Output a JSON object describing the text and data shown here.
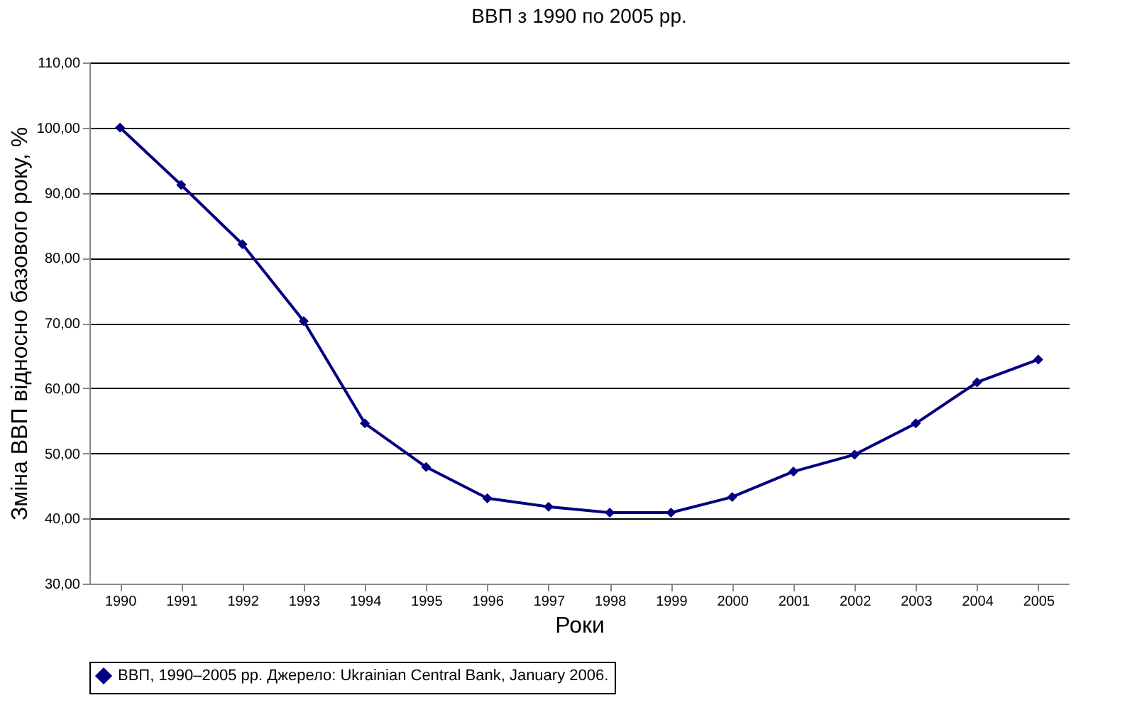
{
  "chart_data": {
    "type": "line",
    "title": "ВВП з 1990 по 2005 рр.",
    "xlabel": "Роки",
    "ylabel": "Зміна ВВП відносно базового року, %",
    "categories": [
      "1990",
      "1991",
      "1992",
      "1993",
      "1994",
      "1995",
      "1996",
      "1997",
      "1998",
      "1999",
      "2000",
      "2001",
      "2002",
      "2003",
      "2004",
      "2005"
    ],
    "series": [
      {
        "name": "ВВП, 1990–2005 рр. Джерело: Ukrainian Central Bank, January 2006.",
        "color": "#000080",
        "values": [
          100.0,
          91.2,
          82.1,
          70.3,
          54.6,
          47.9,
          43.1,
          41.8,
          40.9,
          40.9,
          43.3,
          47.2,
          49.8,
          54.6,
          60.9,
          64.4
        ]
      }
    ],
    "ylim": [
      30,
      110
    ],
    "yticks": [
      {
        "value": 30,
        "label": "30,00"
      },
      {
        "value": 40,
        "label": "40,00"
      },
      {
        "value": 50,
        "label": "50,00"
      },
      {
        "value": 60,
        "label": "60,00"
      },
      {
        "value": 70,
        "label": "70,00"
      },
      {
        "value": 80,
        "label": "80,00"
      },
      {
        "value": 90,
        "label": "90,00"
      },
      {
        "value": 100,
        "label": "100,00"
      },
      {
        "value": 110,
        "label": "110,00"
      }
    ],
    "grid": "y",
    "legend": "bottom",
    "marker": "diamond",
    "line_style": "solid"
  }
}
